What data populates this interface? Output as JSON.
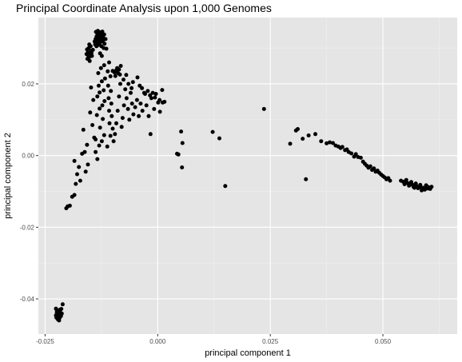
{
  "chart_data": {
    "type": "scatter",
    "title": "Principal Coordinate Analysis upon 1,000 Genomes",
    "xlabel": "principal component 1",
    "ylabel": "principal component 2",
    "xlim": [
      -0.0265,
      0.0665
    ],
    "ylim": [
      -0.0498,
      0.0385
    ],
    "x_ticks": [
      -0.025,
      0.0,
      0.025,
      0.05
    ],
    "x_tick_labels": [
      "-0.025",
      "0.000",
      "0.025",
      "0.050"
    ],
    "y_ticks": [
      -0.04,
      -0.02,
      0.0,
      0.02
    ],
    "y_tick_labels": [
      "-0.04",
      "-0.02",
      "0.00",
      "0.02"
    ],
    "grid": true,
    "background": "#e5e5e5",
    "point_color": "#000000",
    "points": [
      [
        -0.0226,
        -0.0427
      ],
      [
        -0.0224,
        -0.0439
      ],
      [
        -0.0222,
        -0.0447
      ],
      [
        -0.0225,
        -0.0452
      ],
      [
        -0.0221,
        -0.0435
      ],
      [
        -0.0219,
        -0.0441
      ],
      [
        -0.0223,
        -0.0444
      ],
      [
        -0.022,
        -0.045
      ],
      [
        -0.0218,
        -0.0432
      ],
      [
        -0.0217,
        -0.0446
      ],
      [
        -0.0222,
        -0.0456
      ],
      [
        -0.0219,
        -0.046
      ],
      [
        -0.0216,
        -0.0438
      ],
      [
        -0.0224,
        -0.0433
      ],
      [
        -0.022,
        -0.0443
      ],
      [
        -0.0214,
        -0.0428
      ],
      [
        -0.0213,
        -0.0441
      ],
      [
        -0.0226,
        -0.0446
      ],
      [
        -0.0218,
        -0.0453
      ],
      [
        -0.0221,
        -0.0458
      ],
      [
        -0.0211,
        -0.0415
      ],
      [
        -0.0223,
        -0.0438
      ],
      [
        -0.0215,
        -0.0448
      ],
      [
        -0.0217,
        -0.043
      ],
      [
        -0.022,
        -0.0436
      ],
      [
        -0.0203,
        -0.0147
      ],
      [
        -0.02,
        -0.0142
      ],
      [
        -0.0195,
        -0.014
      ],
      [
        -0.019,
        -0.0115
      ],
      [
        -0.0185,
        -0.011
      ],
      [
        -0.0182,
        -0.0079
      ],
      [
        -0.0179,
        -0.0052
      ],
      [
        -0.0175,
        -0.0032
      ],
      [
        -0.0168,
        0.0005
      ],
      [
        -0.0162,
        0.001
      ],
      [
        -0.0185,
        -0.0015
      ],
      [
        -0.0172,
        -0.007
      ],
      [
        -0.016,
        -0.0045
      ],
      [
        -0.0155,
        -0.0025
      ],
      [
        -0.0138,
        0.001
      ],
      [
        -0.0134,
        -0.001
      ],
      [
        -0.013,
        0.0028
      ],
      [
        -0.0124,
        0.004
      ],
      [
        -0.0119,
        0.0057
      ],
      [
        -0.0138,
        0.0045
      ],
      [
        -0.0128,
        0.0078
      ],
      [
        -0.0122,
        0.0102
      ],
      [
        -0.0135,
        0.0113
      ],
      [
        -0.0129,
        0.0131
      ],
      [
        -0.0123,
        0.014
      ],
      [
        -0.0118,
        0.0152
      ],
      [
        -0.0134,
        0.0165
      ],
      [
        -0.0129,
        0.0176
      ],
      [
        -0.012,
        0.0182
      ],
      [
        -0.0131,
        0.0195
      ],
      [
        -0.0124,
        0.0207
      ],
      [
        -0.0117,
        0.0215
      ],
      [
        -0.0132,
        0.023
      ],
      [
        -0.0126,
        0.0244
      ],
      [
        -0.0119,
        0.0252
      ],
      [
        -0.0111,
        0.0235
      ],
      [
        -0.0105,
        0.0221
      ],
      [
        -0.011,
        0.0195
      ],
      [
        -0.0104,
        0.018
      ],
      [
        -0.0109,
        0.016
      ],
      [
        -0.0103,
        0.0145
      ],
      [
        -0.0108,
        0.0125
      ],
      [
        -0.0102,
        0.011
      ],
      [
        -0.0107,
        0.009
      ],
      [
        -0.01,
        0.0075
      ],
      [
        -0.0105,
        0.0055
      ],
      [
        -0.0098,
        0.004
      ],
      [
        -0.0112,
        0.0025
      ],
      [
        -0.0095,
        0.006
      ],
      [
        -0.0092,
        0.009
      ],
      [
        -0.0089,
        0.0125
      ],
      [
        -0.0086,
        0.0165
      ],
      [
        -0.0083,
        0.02
      ],
      [
        -0.008,
        0.008
      ],
      [
        -0.0078,
        0.0105
      ],
      [
        -0.0075,
        0.014
      ],
      [
        -0.0072,
        0.0185
      ],
      [
        -0.0069,
        0.016
      ],
      [
        -0.0066,
        0.013
      ],
      [
        -0.0063,
        0.01
      ],
      [
        -0.006,
        0.0175
      ],
      [
        -0.0057,
        0.0145
      ],
      [
        -0.0054,
        0.0115
      ],
      [
        -0.005,
        0.0135
      ],
      [
        -0.0046,
        0.0155
      ],
      [
        -0.0042,
        0.011
      ],
      [
        -0.0038,
        0.0145
      ],
      [
        -0.0034,
        0.0125
      ],
      [
        -0.003,
        0.0175
      ],
      [
        -0.0025,
        0.014
      ],
      [
        -0.002,
        0.011
      ],
      [
        -0.0014,
        0.016
      ],
      [
        -0.0008,
        0.013
      ],
      [
        -0.0004,
        0.0172
      ],
      [
        0.0001,
        0.0148
      ],
      [
        0.0005,
        0.0122
      ],
      [
        0.001,
        0.0183
      ],
      [
        0.0015,
        0.015
      ],
      [
        -0.0016,
        0.006
      ],
      [
        -0.0148,
        0.019
      ],
      [
        -0.0143,
        0.0155
      ],
      [
        -0.015,
        0.012
      ],
      [
        -0.0145,
        0.0085
      ],
      [
        -0.0141,
        0.005
      ],
      [
        -0.0157,
        0.003
      ],
      [
        -0.0165,
        0.0072
      ],
      [
        -0.0152,
        0.0275
      ],
      [
        -0.015,
        0.0282
      ],
      [
        -0.0155,
        0.0288
      ],
      [
        -0.0148,
        0.0292
      ],
      [
        -0.0153,
        0.03
      ],
      [
        -0.0149,
        0.0305
      ],
      [
        -0.0156,
        0.027
      ],
      [
        -0.0151,
        0.0264
      ],
      [
        -0.0146,
        0.0278
      ],
      [
        -0.0144,
        0.0295
      ],
      [
        -0.0157,
        0.0296
      ],
      [
        -0.0154,
        0.0279
      ],
      [
        -0.0147,
        0.0286
      ],
      [
        -0.0152,
        0.031
      ],
      [
        -0.0158,
        0.0283
      ],
      [
        -0.014,
        0.0318
      ],
      [
        -0.0138,
        0.0325
      ],
      [
        -0.0136,
        0.0332
      ],
      [
        -0.0134,
        0.034
      ],
      [
        -0.0132,
        0.0328
      ],
      [
        -0.013,
        0.0336
      ],
      [
        -0.0128,
        0.0322
      ],
      [
        -0.0126,
        0.033
      ],
      [
        -0.0124,
        0.0338
      ],
      [
        -0.0122,
        0.0318
      ],
      [
        -0.012,
        0.0326
      ],
      [
        -0.0118,
        0.0312
      ],
      [
        -0.0137,
        0.0345
      ],
      [
        -0.0133,
        0.0348
      ],
      [
        -0.0129,
        0.0344
      ],
      [
        -0.0125,
        0.0322
      ],
      [
        -0.0121,
        0.0334
      ],
      [
        -0.0139,
        0.031
      ],
      [
        -0.0135,
        0.0316
      ],
      [
        -0.0131,
        0.0309
      ],
      [
        -0.0127,
        0.0342
      ],
      [
        -0.0123,
        0.0346
      ],
      [
        -0.0119,
        0.0338
      ],
      [
        -0.0116,
        0.0325
      ],
      [
        -0.0133,
        0.032
      ],
      [
        -0.0129,
        0.0313
      ],
      [
        -0.0125,
        0.0305
      ],
      [
        -0.012,
        0.03
      ],
      [
        -0.0114,
        0.0298
      ],
      [
        -0.0128,
        0.0285
      ],
      [
        -0.0124,
        0.0278
      ],
      [
        -0.0136,
        0.0305
      ],
      [
        -0.01,
        0.0236
      ],
      [
        -0.0096,
        0.0232
      ],
      [
        -0.0092,
        0.0238
      ],
      [
        -0.0088,
        0.023
      ],
      [
        -0.0084,
        0.0226
      ],
      [
        -0.0094,
        0.0222
      ],
      [
        -0.009,
        0.0244
      ],
      [
        -0.0086,
        0.024
      ],
      [
        -0.0108,
        0.026
      ],
      [
        -0.0082,
        0.025
      ],
      [
        -0.0076,
        0.0212
      ],
      [
        -0.007,
        0.0225
      ],
      [
        -0.0065,
        0.02
      ],
      [
        -0.0055,
        0.0205
      ],
      [
        -0.0045,
        0.0218
      ],
      [
        -0.004,
        0.0195
      ],
      [
        -0.0035,
        0.0188
      ],
      [
        -0.0028,
        0.0172
      ],
      [
        -0.0022,
        0.018
      ],
      [
        -0.0017,
        0.0168
      ],
      [
        -0.0011,
        0.0175
      ],
      [
        -0.0006,
        0.0162
      ],
      [
        0.0004,
        0.0155
      ],
      [
        0.0011,
        0.0148
      ],
      [
        -0.0058,
        0.0188
      ],
      [
        0.0043,
        0.0005
      ],
      [
        0.0046,
        0.0003
      ],
      [
        0.0052,
        0.0067
      ],
      [
        0.0055,
        0.0035
      ],
      [
        0.0054,
        -0.0033
      ],
      [
        0.0122,
        0.0066
      ],
      [
        0.0137,
        0.0048
      ],
      [
        0.015,
        -0.0085
      ],
      [
        0.0236,
        0.013
      ],
      [
        0.0294,
        0.0033
      ],
      [
        0.0307,
        0.007
      ],
      [
        0.0311,
        0.0074
      ],
      [
        0.0322,
        0.0047
      ],
      [
        0.0329,
        -0.0066
      ],
      [
        0.0335,
        0.0056
      ],
      [
        0.035,
        0.006
      ],
      [
        0.0363,
        0.004
      ],
      [
        0.0375,
        0.0034
      ],
      [
        0.0382,
        0.0037
      ],
      [
        0.0389,
        0.0035
      ],
      [
        0.0395,
        0.0028
      ],
      [
        0.0401,
        0.0025
      ],
      [
        0.0406,
        0.0021
      ],
      [
        0.041,
        0.0024
      ],
      [
        0.0416,
        0.0015
      ],
      [
        0.042,
        0.0017
      ],
      [
        0.0424,
        0.001
      ],
      [
        0.043,
        0.0006
      ],
      [
        0.0436,
        -0.0003
      ],
      [
        0.044,
        0.0004
      ],
      [
        0.0445,
        -0.0004
      ],
      [
        0.0451,
        -0.0006
      ],
      [
        0.0456,
        -0.0017
      ],
      [
        0.046,
        -0.0023
      ],
      [
        0.0464,
        -0.0028
      ],
      [
        0.0468,
        -0.0034
      ],
      [
        0.0472,
        -0.003
      ],
      [
        0.0476,
        -0.004
      ],
      [
        0.048,
        -0.0036
      ],
      [
        0.0484,
        -0.0045
      ],
      [
        0.0488,
        -0.0042
      ],
      [
        0.0492,
        -0.0048
      ],
      [
        0.0496,
        -0.0053
      ],
      [
        0.05,
        -0.0057
      ],
      [
        0.0504,
        -0.0061
      ],
      [
        0.0508,
        -0.0066
      ],
      [
        0.0512,
        -0.0063
      ],
      [
        0.0516,
        -0.007
      ],
      [
        0.054,
        -0.007
      ],
      [
        0.0545,
        -0.0073
      ],
      [
        0.055,
        -0.0075
      ],
      [
        0.0555,
        -0.0077
      ],
      [
        0.056,
        -0.0079
      ],
      [
        0.0565,
        -0.0081
      ],
      [
        0.057,
        -0.0083
      ],
      [
        0.0575,
        -0.0085
      ],
      [
        0.058,
        -0.0087
      ],
      [
        0.0585,
        -0.0089
      ],
      [
        0.059,
        -0.009
      ],
      [
        0.0595,
        -0.0091
      ],
      [
        0.06,
        -0.0092
      ],
      [
        0.0605,
        -0.0093
      ],
      [
        0.0558,
        -0.0084
      ],
      [
        0.0568,
        -0.0087
      ],
      [
        0.0578,
        -0.0091
      ],
      [
        0.0588,
        -0.0093
      ],
      [
        0.0598,
        -0.0086
      ],
      [
        0.0603,
        -0.0089
      ],
      [
        0.0548,
        -0.008
      ],
      [
        0.0563,
        -0.0074
      ],
      [
        0.0573,
        -0.0078
      ],
      [
        0.0583,
        -0.0082
      ],
      [
        0.0593,
        -0.0095
      ],
      [
        0.0608,
        -0.0087
      ],
      [
        0.0552,
        -0.0068
      ],
      [
        0.057,
        -0.009
      ],
      [
        0.0586,
        -0.0097
      ],
      [
        0.0596,
        -0.0083
      ]
    ]
  }
}
